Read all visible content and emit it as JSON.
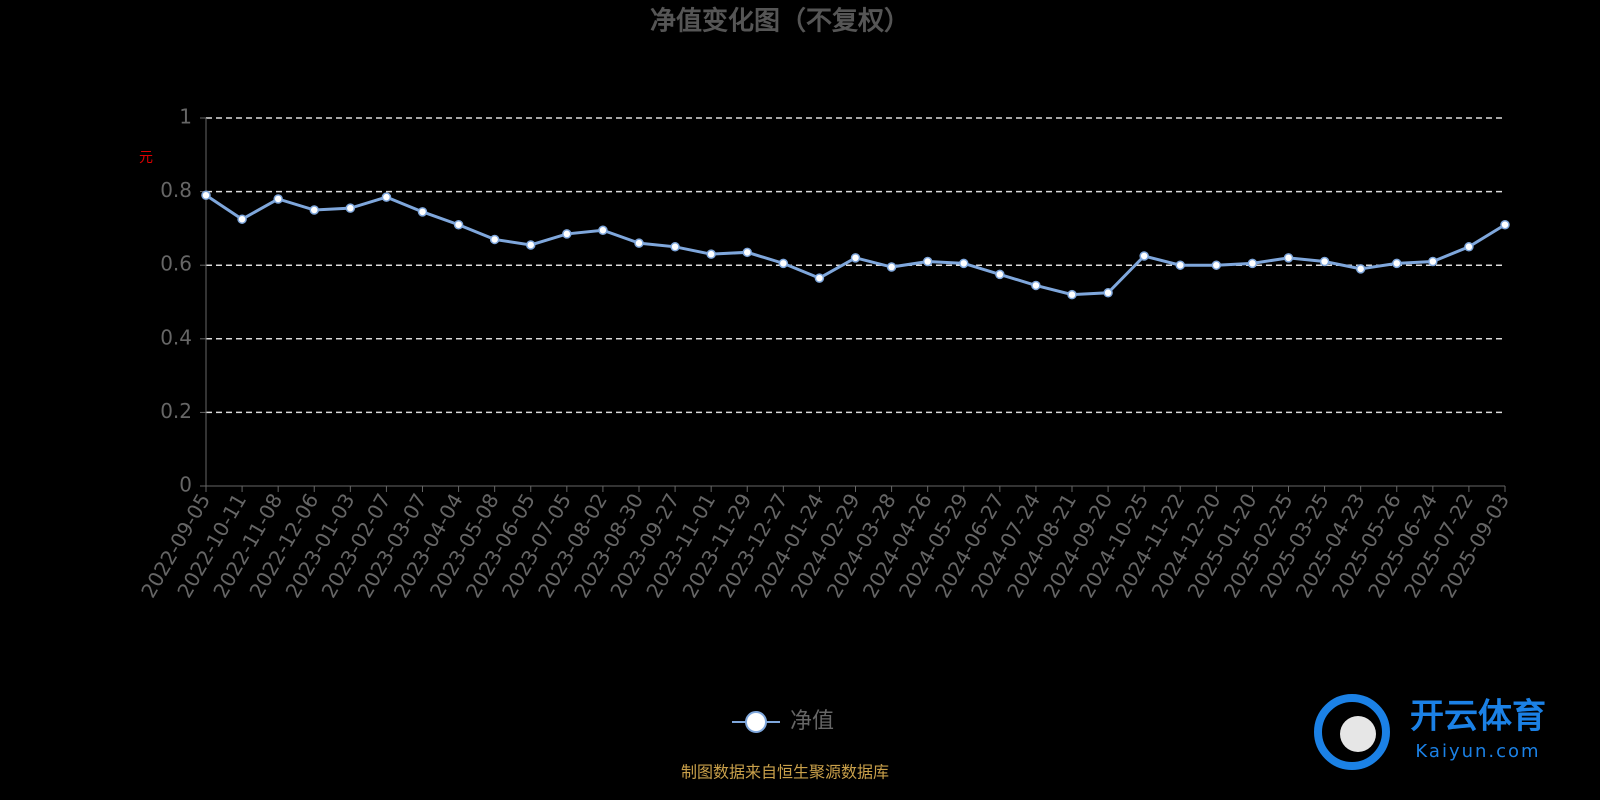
{
  "chart_data": {
    "type": "line",
    "title": "净值变化图（不复权）",
    "y_label": "元",
    "x": [
      "2022-09-05",
      "2022-10-11",
      "2022-11-08",
      "2022-12-06",
      "2023-01-03",
      "2023-02-07",
      "2023-03-07",
      "2023-04-04",
      "2023-05-08",
      "2023-06-05",
      "2023-07-05",
      "2023-08-02",
      "2023-08-30",
      "2023-09-27",
      "2023-11-01",
      "2023-11-29",
      "2023-12-27",
      "2024-01-24",
      "2024-02-29",
      "2024-03-28",
      "2024-04-26",
      "2024-05-29",
      "2024-06-27",
      "2024-07-24",
      "2024-08-21",
      "2024-09-20",
      "2024-10-25",
      "2024-11-22",
      "2024-12-20",
      "2025-01-20",
      "2025-02-25",
      "2025-03-25",
      "2025-04-23",
      "2025-05-26",
      "2025-06-24",
      "2025-07-22",
      "2025-09-03"
    ],
    "series": [
      {
        "name": "净值",
        "color": "#7fa7dc",
        "values": [
          0.79,
          0.725,
          0.78,
          0.75,
          0.755,
          0.785,
          0.745,
          0.71,
          0.67,
          0.655,
          0.685,
          0.695,
          0.66,
          0.65,
          0.63,
          0.635,
          0.605,
          0.565,
          0.62,
          0.595,
          0.61,
          0.605,
          0.575,
          0.545,
          0.52,
          0.525,
          0.625,
          0.6,
          0.6,
          0.605,
          0.62,
          0.61,
          0.59,
          0.605,
          0.61,
          0.65,
          0.71
        ]
      }
    ],
    "ylim": [
      0,
      1
    ],
    "yticks": [
      0,
      0.2,
      0.4,
      0.6,
      0.8,
      1
    ],
    "grid": true,
    "source": "制图数据来自恒生聚源数据库",
    "watermark": {
      "brand": "开云体育",
      "site": "Kaiyun.com"
    }
  }
}
